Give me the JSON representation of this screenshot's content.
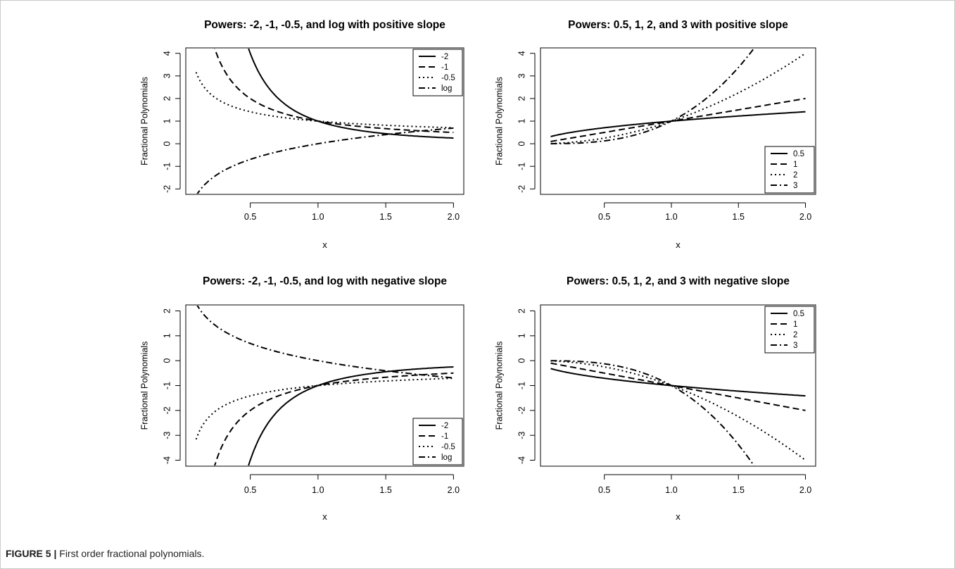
{
  "caption": {
    "label": "FIGURE 5 |",
    "text": "First order fractional polynomials."
  },
  "chart_data": [
    {
      "type": "line",
      "title": "Powers: -2, -1, -0.5, and log with positive slope",
      "xlabel": "x",
      "ylabel": "Fractional Polynomials",
      "xlim": [
        0.1,
        2.0
      ],
      "ylim": [
        -2,
        4
      ],
      "xticks": [
        0.5,
        1.0,
        1.5,
        2.0
      ],
      "xtick_labels": [
        "0.5",
        "1.0",
        "1.5",
        "2.0"
      ],
      "yticks": [
        -2,
        -1,
        0,
        1,
        2,
        3,
        4
      ],
      "ytick_labels": [
        "-2",
        "-1",
        "0",
        "1",
        "2",
        "3",
        "4"
      ],
      "grid": false,
      "legend_position": "top-right",
      "series": [
        {
          "name": "-2",
          "power": -2,
          "sign": 1,
          "dash": "solid"
        },
        {
          "name": "-1",
          "power": -1,
          "sign": 1,
          "dash": "dashed"
        },
        {
          "name": "-0.5",
          "power": -0.5,
          "sign": 1,
          "dash": "dotted"
        },
        {
          "name": "log",
          "power": "log",
          "sign": 1,
          "dash": "dotdash"
        }
      ]
    },
    {
      "type": "line",
      "title": "Powers: 0.5, 1, 2, and 3 with positive slope",
      "xlabel": "x",
      "ylabel": "Fractional Polynomials",
      "xlim": [
        0.1,
        2.0
      ],
      "ylim": [
        -2,
        4
      ],
      "xticks": [
        0.5,
        1.0,
        1.5,
        2.0
      ],
      "xtick_labels": [
        "0.5",
        "1.0",
        "1.5",
        "2.0"
      ],
      "yticks": [
        -2,
        -1,
        0,
        1,
        2,
        3,
        4
      ],
      "ytick_labels": [
        "-2",
        "-1",
        "0",
        "1",
        "2",
        "3",
        "4"
      ],
      "grid": false,
      "legend_position": "bottom-right",
      "series": [
        {
          "name": "0.5",
          "power": 0.5,
          "sign": 1,
          "dash": "solid"
        },
        {
          "name": "1",
          "power": 1,
          "sign": 1,
          "dash": "dashed"
        },
        {
          "name": "2",
          "power": 2,
          "sign": 1,
          "dash": "dotted"
        },
        {
          "name": "3",
          "power": 3,
          "sign": 1,
          "dash": "dotdash"
        }
      ]
    },
    {
      "type": "line",
      "title": "Powers: -2, -1, -0.5, and log with negative slope",
      "xlabel": "x",
      "ylabel": "Fractional Polynomials",
      "xlim": [
        0.1,
        2.0
      ],
      "ylim": [
        -4,
        2
      ],
      "xticks": [
        0.5,
        1.0,
        1.5,
        2.0
      ],
      "xtick_labels": [
        "0.5",
        "1.0",
        "1.5",
        "2.0"
      ],
      "yticks": [
        -4,
        -3,
        -2,
        -1,
        0,
        1,
        2
      ],
      "ytick_labels": [
        "-4",
        "-3",
        "-2",
        "-1",
        "0",
        "1",
        "2"
      ],
      "grid": false,
      "legend_position": "bottom-right",
      "series": [
        {
          "name": "-2",
          "power": -2,
          "sign": -1,
          "dash": "solid"
        },
        {
          "name": "-1",
          "power": -1,
          "sign": -1,
          "dash": "dashed"
        },
        {
          "name": "-0.5",
          "power": -0.5,
          "sign": -1,
          "dash": "dotted"
        },
        {
          "name": "log",
          "power": "log",
          "sign": -1,
          "dash": "dotdash"
        }
      ]
    },
    {
      "type": "line",
      "title": "Powers: 0.5, 1, 2, and 3 with negative slope",
      "xlabel": "x",
      "ylabel": "Fractional Polynomials",
      "xlim": [
        0.1,
        2.0
      ],
      "ylim": [
        -4,
        2
      ],
      "xticks": [
        0.5,
        1.0,
        1.5,
        2.0
      ],
      "xtick_labels": [
        "0.5",
        "1.0",
        "1.5",
        "2.0"
      ],
      "yticks": [
        -4,
        -3,
        -2,
        -1,
        0,
        1,
        2
      ],
      "ytick_labels": [
        "-4",
        "-3",
        "-2",
        "-1",
        "0",
        "1",
        "2"
      ],
      "grid": false,
      "legend_position": "top-right",
      "series": [
        {
          "name": "0.5",
          "power": 0.5,
          "sign": -1,
          "dash": "solid"
        },
        {
          "name": "1",
          "power": 1,
          "sign": -1,
          "dash": "dashed"
        },
        {
          "name": "2",
          "power": 2,
          "sign": -1,
          "dash": "dotted"
        },
        {
          "name": "3",
          "power": 3,
          "sign": -1,
          "dash": "dotdash"
        }
      ]
    }
  ]
}
